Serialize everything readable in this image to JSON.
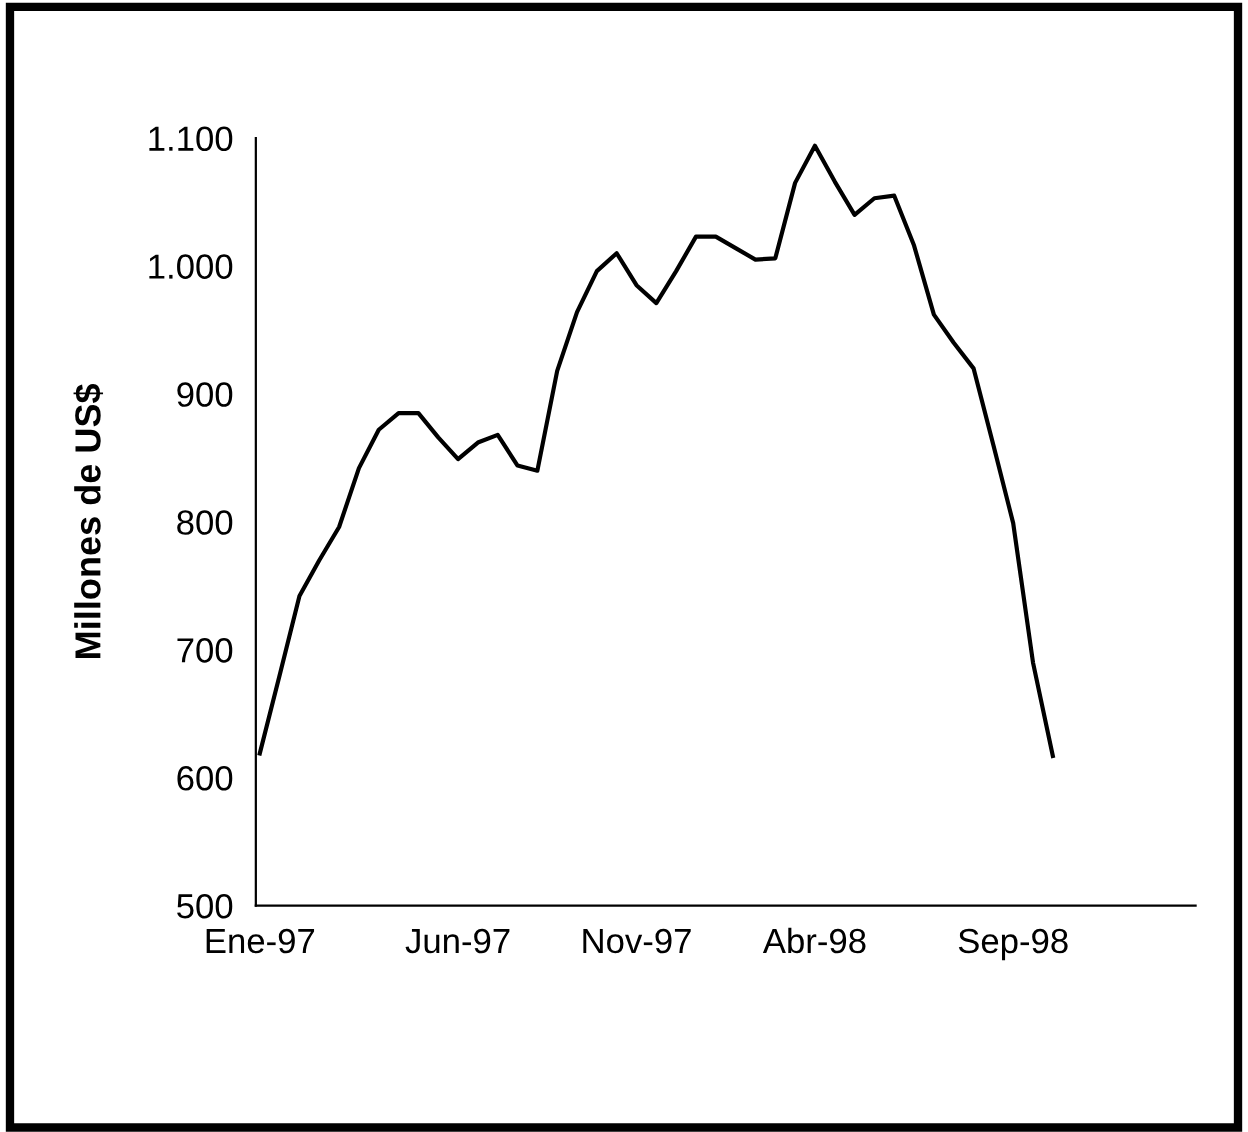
{
  "chart_data": {
    "type": "line",
    "ylabel": "Millones de US$",
    "categories": [
      "Ene-97",
      null,
      null,
      null,
      null,
      null,
      null,
      null,
      null,
      null,
      "Jun-97",
      null,
      null,
      null,
      null,
      null,
      null,
      null,
      null,
      "Nov-97",
      null,
      null,
      null,
      null,
      null,
      null,
      null,
      null,
      "Abr-98",
      null,
      null,
      null,
      null,
      null,
      null,
      null,
      null,
      null,
      "Sep-98",
      null,
      null
    ],
    "series": [
      {
        "color": "#000000",
        "values": [
          619,
          680,
          742,
          770,
          796,
          842,
          872,
          885,
          885,
          866,
          849,
          862,
          868,
          844,
          840,
          918,
          964,
          996,
          1010,
          985,
          971,
          996,
          1023,
          1023,
          1014,
          1005,
          1006,
          1065,
          1094,
          1066,
          1040,
          1053,
          1055,
          1016,
          962,
          940,
          920,
          860,
          799,
          690,
          617
        ]
      }
    ],
    "ylim": [
      500,
      1100
    ],
    "yticks": [
      500,
      600,
      700,
      800,
      900,
      {
        "value": 1000,
        "label": "1.000"
      },
      {
        "value": 1100,
        "label": "1.100"
      }
    ],
    "grid": false,
    "legend": false,
    "marker": "none",
    "line_style": "solid"
  }
}
